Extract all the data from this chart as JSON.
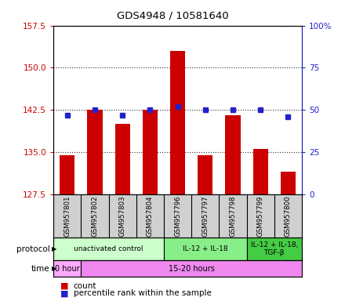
{
  "title": "GDS4948 / 10581640",
  "samples": [
    "GSM957801",
    "GSM957802",
    "GSM957803",
    "GSM957804",
    "GSM957796",
    "GSM957797",
    "GSM957798",
    "GSM957799",
    "GSM957800"
  ],
  "count_values": [
    134.5,
    142.5,
    140.0,
    142.5,
    153.0,
    134.5,
    141.5,
    135.5,
    131.5
  ],
  "percentile_values": [
    47,
    50,
    47,
    50,
    52,
    50,
    50,
    50,
    46
  ],
  "left_ylim": [
    127.5,
    157.5
  ],
  "left_yticks": [
    127.5,
    135.0,
    142.5,
    150.0,
    157.5
  ],
  "right_ylim": [
    0,
    100
  ],
  "right_yticks": [
    0,
    25,
    50,
    75,
    100
  ],
  "right_yticklabels": [
    "0",
    "25",
    "50",
    "75",
    "100%"
  ],
  "bar_color": "#cc0000",
  "dot_color": "#2222cc",
  "bar_width": 0.55,
  "proto_spans": [
    {
      "start": 0,
      "end": 3,
      "label": "unactivated control",
      "color": "#ccffcc"
    },
    {
      "start": 4,
      "end": 6,
      "label": "IL-12 + IL-18",
      "color": "#88ee88"
    },
    {
      "start": 7,
      "end": 8,
      "label": "IL-12 + IL-18,\nTGF-β",
      "color": "#44cc44"
    }
  ],
  "time_spans": [
    {
      "start": 0,
      "end": 0,
      "label": "0 hour",
      "color": "#ffaaff"
    },
    {
      "start": 1,
      "end": 8,
      "label": "15-20 hours",
      "color": "#ee88ee"
    }
  ],
  "left_axis_color": "#cc0000",
  "right_axis_color": "#2222cc",
  "sample_bg": "#d0d0d0",
  "grid_linestyle": ":",
  "grid_color": "#333333",
  "grid_lw": 0.8
}
